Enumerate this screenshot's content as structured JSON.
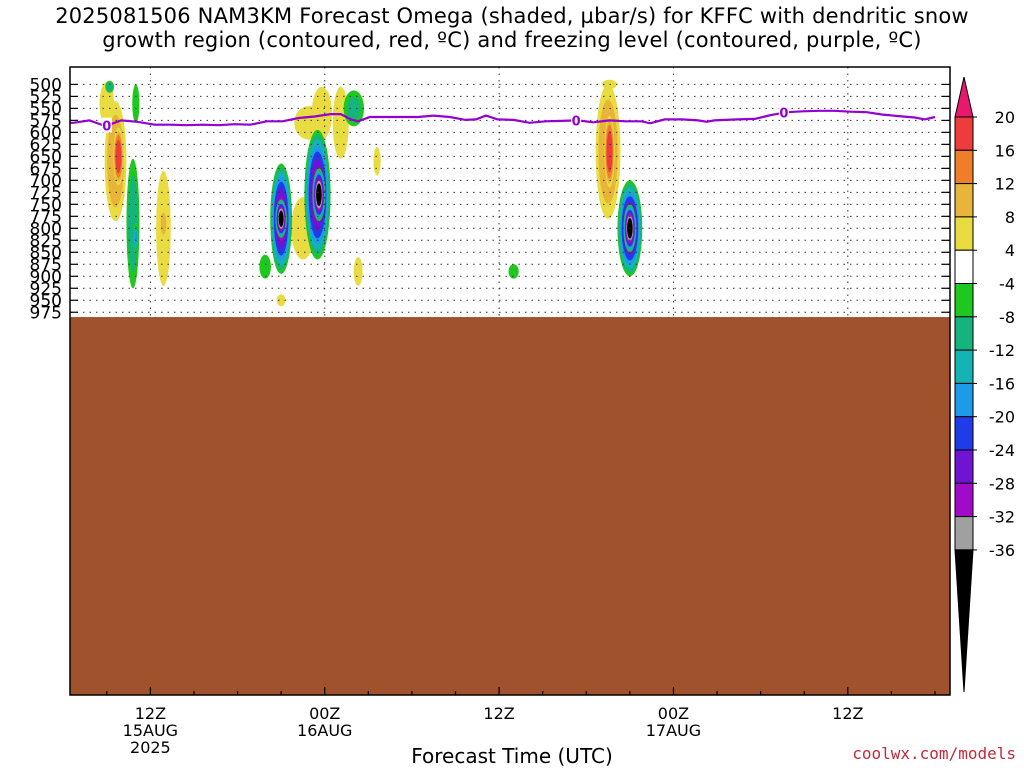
{
  "title_lines": [
    "2025081506 NAM3KM Forecast Omega (shaded, µbar/s) for KFFC with dendritic snow",
    "growth region (contoured, red, ºC) and freezing level (contoured, purple, ºC)"
  ],
  "credit": "coolwx.com/models",
  "chart_data": {
    "type": "heatmap",
    "title": "2025081506 NAM3KM Forecast Omega (shaded, µbar/s) for KFFC with dendritic snow growth region (contoured, red, ºC) and freezing level (contoured, purple, ºC)",
    "xlabel": "Forecast Time (UTC)",
    "ylabel": "",
    "units": "µbar/s",
    "x_range_hours_since_init": [
      0,
      60
    ],
    "y_axis": {
      "ticks": [
        500,
        525,
        550,
        575,
        600,
        625,
        650,
        675,
        700,
        725,
        750,
        775,
        800,
        825,
        850,
        875,
        900,
        925,
        950,
        975
      ],
      "range": [
        495,
        995
      ],
      "inverted": true,
      "tick_labels": [
        "500",
        "525",
        "550",
        "575",
        "600",
        "625",
        "650",
        "675",
        "700",
        "725",
        "750",
        "775",
        "800",
        "825",
        "850",
        "875",
        "900",
        "925",
        "950",
        "975"
      ]
    },
    "x_ticks": [
      {
        "hour": 6,
        "lines": [
          "12Z",
          "15AUG",
          "2025"
        ]
      },
      {
        "hour": 18,
        "lines": [
          "00Z",
          "16AUG"
        ]
      },
      {
        "hour": 30,
        "lines": [
          "12Z"
        ]
      },
      {
        "hour": 42,
        "lines": [
          "00Z",
          "17AUG"
        ]
      },
      {
        "hour": 54,
        "lines": [
          "12Z"
        ]
      }
    ],
    "grid": "dotted",
    "colorbar": {
      "position": "right",
      "labels": [
        "20",
        "16",
        "12",
        "8",
        "4",
        "-4",
        "-8",
        "-12",
        "-16",
        "-20",
        "-24",
        "-28",
        "-32",
        "-36"
      ],
      "colors": [
        "#e8186e",
        "#ee3b3b",
        "#f07d28",
        "#e8b43a",
        "#e8dc40",
        "#ffffff",
        "#1ec81e",
        "#15b47e",
        "#15b4b4",
        "#1e9be8",
        "#1e3ce8",
        "#6e14d2",
        "#a00ac8",
        "#a0a0a0",
        "#000000"
      ]
    },
    "freezing_level": {
      "label": "0",
      "points": [
        [
          0,
          580
        ],
        [
          0.7,
          580
        ],
        [
          1.8,
          575
        ],
        [
          2.9,
          587
        ],
        [
          4.0,
          575
        ],
        [
          5.1,
          578
        ],
        [
          6.3,
          584
        ],
        [
          7.4,
          584
        ],
        [
          8.5,
          585
        ],
        [
          9.6,
          584
        ],
        [
          10.7,
          585
        ],
        [
          11.8,
          583
        ],
        [
          12.9,
          584
        ],
        [
          14.0,
          577
        ],
        [
          15.1,
          577
        ],
        [
          16.2,
          570
        ],
        [
          17.3,
          567
        ],
        [
          18.4,
          562
        ],
        [
          19.1,
          562
        ],
        [
          19.8,
          573
        ],
        [
          20.3,
          577
        ],
        [
          21.1,
          568
        ],
        [
          22.2,
          568
        ],
        [
          23.3,
          568
        ],
        [
          24.4,
          568
        ],
        [
          25.5,
          565
        ],
        [
          26.6,
          568
        ],
        [
          27.7,
          574
        ],
        [
          28.4,
          573
        ],
        [
          29.1,
          565
        ],
        [
          29.9,
          573
        ],
        [
          31.0,
          574
        ],
        [
          32.1,
          580
        ],
        [
          33.2,
          577
        ],
        [
          34.3,
          576
        ],
        [
          35.4,
          575
        ],
        [
          36.5,
          579
        ],
        [
          37.6,
          575
        ],
        [
          38.7,
          577
        ],
        [
          39.8,
          577
        ],
        [
          40.4,
          581
        ],
        [
          41.4,
          573
        ],
        [
          42.6,
          573
        ],
        [
          43.7,
          575
        ],
        [
          44.3,
          578
        ],
        [
          44.8,
          575
        ],
        [
          45.6,
          574
        ],
        [
          46.4,
          573
        ],
        [
          47.6,
          572
        ],
        [
          48.7,
          564
        ],
        [
          49.8,
          558
        ],
        [
          50.9,
          556
        ],
        [
          52.0,
          555
        ],
        [
          53.1,
          555
        ],
        [
          54.2,
          557
        ],
        [
          55.3,
          558
        ],
        [
          56.4,
          563
        ],
        [
          57.5,
          566
        ],
        [
          58.6,
          569
        ],
        [
          59.3,
          573
        ],
        [
          60,
          568
        ]
      ],
      "label_hours": [
        3.0,
        35.3,
        49.6
      ]
    },
    "terrain_surface_hpa": 985,
    "terrain_color": "#a0522d",
    "omega_features": [
      {
        "x": 3.6,
        "p": 660,
        "w": 0.75,
        "h": 250,
        "v": 10
      },
      {
        "x": 3.8,
        "p": 650,
        "w": 0.35,
        "h": 120,
        "v": 18
      },
      {
        "x": 3.0,
        "p": 540,
        "w": 0.5,
        "h": 90,
        "v": 6
      },
      {
        "x": 4.8,
        "p": 790,
        "w": 0.45,
        "h": 270,
        "v": -10
      },
      {
        "x": 5.0,
        "p": 820,
        "w": 0.2,
        "h": 60,
        "v": -16
      },
      {
        "x": 3.2,
        "p": 505,
        "w": 0.3,
        "h": 25,
        "v": -10
      },
      {
        "x": 5.0,
        "p": 540,
        "w": 0.25,
        "h": 80,
        "v": -6
      },
      {
        "x": 6.9,
        "p": 800,
        "w": 0.5,
        "h": 240,
        "v": 6
      },
      {
        "x": 6.9,
        "p": 790,
        "w": 0.25,
        "h": 60,
        "v": 10
      },
      {
        "x": 15.0,
        "p": 780,
        "w": 0.75,
        "h": 230,
        "v": -30
      },
      {
        "x": 15.0,
        "p": 780,
        "w": 0.4,
        "h": 80,
        "v": -40
      },
      {
        "x": 13.9,
        "p": 880,
        "w": 0.4,
        "h": 50,
        "v": -6
      },
      {
        "x": 17.5,
        "p": 730,
        "w": 0.9,
        "h": 270,
        "v": -30
      },
      {
        "x": 17.6,
        "p": 730,
        "w": 0.45,
        "h": 110,
        "v": -40
      },
      {
        "x": 19.1,
        "p": 580,
        "w": 0.55,
        "h": 150,
        "v": 6
      },
      {
        "x": 16.9,
        "p": 580,
        "w": 1.0,
        "h": 70,
        "v": 4
      },
      {
        "x": 17.8,
        "p": 560,
        "w": 0.7,
        "h": 110,
        "v": 4
      },
      {
        "x": 16.5,
        "p": 800,
        "w": 0.8,
        "h": 130,
        "v": 4
      },
      {
        "x": 20.0,
        "p": 550,
        "w": 0.7,
        "h": 75,
        "v": -8
      },
      {
        "x": 21.6,
        "p": 660,
        "w": 0.25,
        "h": 60,
        "v": 4
      },
      {
        "x": 20.3,
        "p": 890,
        "w": 0.3,
        "h": 60,
        "v": 6
      },
      {
        "x": 15.0,
        "p": 950,
        "w": 0.3,
        "h": 25,
        "v": 6
      },
      {
        "x": 31.0,
        "p": 890,
        "w": 0.35,
        "h": 30,
        "v": -6
      },
      {
        "x": 37.5,
        "p": 640,
        "w": 0.85,
        "h": 280,
        "v": 10
      },
      {
        "x": 37.6,
        "p": 640,
        "w": 0.35,
        "h": 150,
        "v": 18
      },
      {
        "x": 39.0,
        "p": 800,
        "w": 0.85,
        "h": 200,
        "v": -30
      },
      {
        "x": 39.0,
        "p": 800,
        "w": 0.45,
        "h": 100,
        "v": -40
      },
      {
        "x": 37.6,
        "p": 500,
        "w": 0.5,
        "h": 20,
        "v": 6
      }
    ]
  }
}
